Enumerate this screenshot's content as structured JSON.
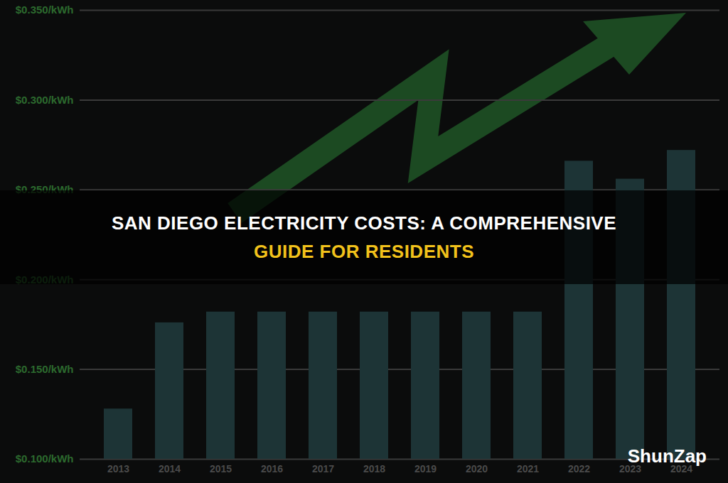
{
  "chart_data": {
    "type": "bar",
    "title": "SAN DIEGO ELECTRICITY COSTS: A COMPREHENSIVE GUIDE FOR RESIDENTS",
    "annotations": [
      "ShunZap"
    ],
    "categories": [
      "2013",
      "2014",
      "2015",
      "2016",
      "2017",
      "2018",
      "2019",
      "2020",
      "2021",
      "2022",
      "2023",
      "2024"
    ],
    "values": [
      0.128,
      0.176,
      0.182,
      0.182,
      0.182,
      0.182,
      0.182,
      0.182,
      0.182,
      0.266,
      0.256,
      0.272
    ],
    "color": "#1d3436",
    "ylim": [
      0.1,
      0.35
    ],
    "yticks": [
      {
        "value": 0.1,
        "label": "$0.100/kWh"
      },
      {
        "value": 0.15,
        "label": "$0.150/kWh"
      },
      {
        "value": 0.2,
        "label": "$0.200/kWh"
      },
      {
        "value": 0.25,
        "label": "$0.250/kWh"
      },
      {
        "value": 0.3,
        "label": "$0.300/kWh"
      },
      {
        "value": 0.35,
        "label": "$0.350/kWh"
      }
    ],
    "grid": true
  }
}
